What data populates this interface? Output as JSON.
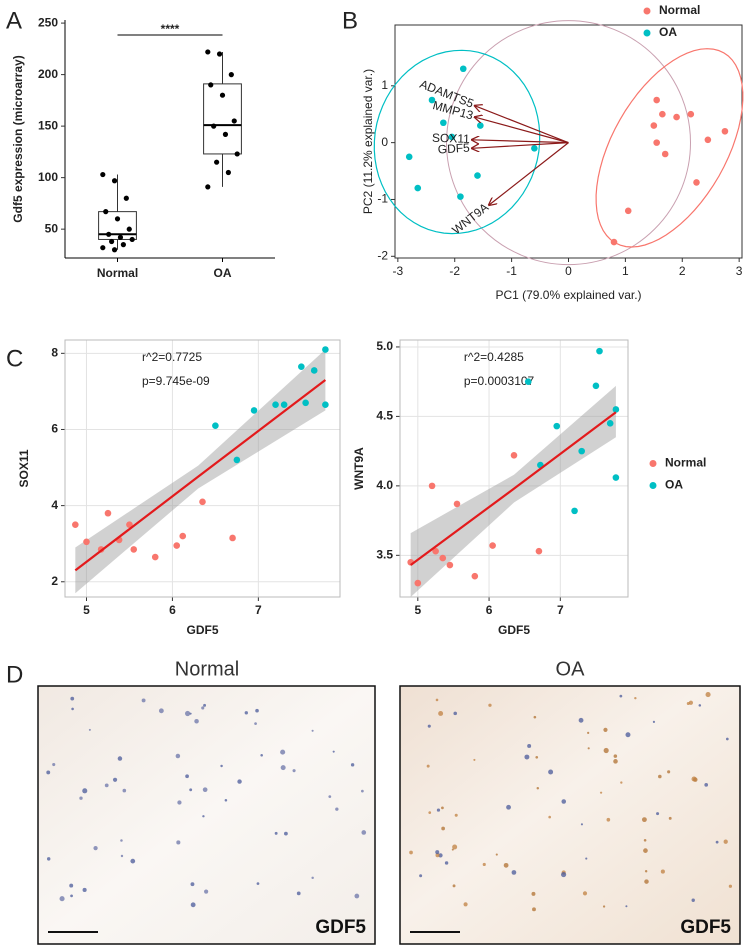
{
  "panel_labels": [
    "A",
    "B",
    "C",
    "D"
  ],
  "histology": [
    {
      "title": "Normal",
      "stain": "GDF5"
    },
    {
      "title": "OA",
      "stain": "GDF5"
    }
  ],
  "chart_data": [
    {
      "type": "box",
      "ylabel": "Gdf5 expression (microarray)",
      "categories": [
        "Normal",
        "OA"
      ],
      "color": "#000000",
      "ylim": [
        22,
        253
      ],
      "yticks": [
        50,
        100,
        150,
        200,
        250
      ],
      "significance": "****",
      "boxes": [
        {
          "min": 30,
          "q1": 40,
          "median": 45,
          "q3": 67,
          "max": 103
        },
        {
          "min": 91,
          "q1": 123,
          "median": 151,
          "q3": 191,
          "max": 222
        }
      ],
      "points": [
        [
          103,
          97,
          80,
          67,
          60,
          50,
          45,
          42,
          40,
          38,
          35,
          32,
          30
        ],
        [
          222,
          220,
          200,
          190,
          180,
          155,
          150,
          142,
          123,
          115,
          105,
          91
        ]
      ]
    },
    {
      "type": "biplot",
      "xlabel": "PC1 (79.0% explained var.)",
      "ylabel": "PC2 (11.2% explained var.)",
      "xlim": [
        -3.05,
        3.05
      ],
      "xticks": [
        -3,
        -2,
        -1,
        0,
        1,
        2,
        3
      ],
      "ylim": [
        -2.03,
        2.07
      ],
      "yticks": [
        -2,
        -1,
        0,
        1
      ],
      "legend": "top-right",
      "arrow_color": "#8b1a1a",
      "series": [
        {
          "name": "Normal",
          "color": "#f8766d",
          "x": [
            0.8,
            1.05,
            1.5,
            1.55,
            1.55,
            1.65,
            1.7,
            1.9,
            2.15,
            2.25,
            2.45,
            2.75
          ],
          "y": [
            -1.75,
            -1.2,
            0.3,
            0.75,
            0.0,
            0.5,
            -0.2,
            0.45,
            0.5,
            -0.7,
            0.05,
            0.2
          ]
        },
        {
          "name": "OA",
          "color": "#00bfc4",
          "x": [
            -2.8,
            -2.65,
            -2.4,
            -2.2,
            -2.05,
            -1.9,
            -1.85,
            -1.6,
            -1.55,
            -0.6
          ],
          "y": [
            -0.25,
            -0.8,
            0.75,
            0.35,
            0.1,
            -0.95,
            1.3,
            -0.58,
            0.3,
            -0.1
          ]
        }
      ],
      "arrows": [
        {
          "label": "ADAMTS5",
          "x": -1.65,
          "y": 0.65
        },
        {
          "label": "MMP13",
          "x": -1.65,
          "y": 0.45
        },
        {
          "label": "SOX11",
          "x": -1.7,
          "y": 0.05
        },
        {
          "label": "GDF5",
          "x": -1.7,
          "y": -0.1
        },
        {
          "label": "WNT9A",
          "x": -1.4,
          "y": -1.1
        }
      ]
    },
    {
      "type": "scatter",
      "xlabel": "GDF5",
      "ylabel": "SOX11",
      "grid": true,
      "xlim": [
        4.75,
        7.95
      ],
      "xticks": [
        5,
        6,
        7
      ],
      "ylim": [
        1.6,
        8.35
      ],
      "yticks": [
        2,
        4,
        6,
        8
      ],
      "annotations": [
        "r^2=0.7725",
        "p=9.745e-09"
      ],
      "series": [
        {
          "color": "#f8766d",
          "x": [
            4.87,
            5.0,
            5.17,
            5.25,
            5.38,
            5.5,
            5.55,
            5.8,
            6.05,
            6.12,
            6.35,
            6.7
          ],
          "y": [
            3.5,
            3.05,
            2.85,
            3.8,
            3.1,
            3.5,
            2.85,
            2.65,
            2.95,
            3.2,
            4.1,
            3.15
          ]
        },
        {
          "color": "#00bfc4",
          "x": [
            6.5,
            6.75,
            6.95,
            7.2,
            7.3,
            7.5,
            7.55,
            7.65,
            7.78,
            7.78
          ],
          "y": [
            6.1,
            5.2,
            6.5,
            6.65,
            6.65,
            7.65,
            6.7,
            7.55,
            8.1,
            6.65
          ]
        }
      ],
      "fit": {
        "color": "#e31a1c",
        "band_color": "#999999",
        "x": [
          4.87,
          6.3,
          7.78
        ],
        "y": [
          2.3,
          4.76,
          7.3
        ],
        "lower": [
          1.7,
          4.45,
          6.5
        ],
        "upper": [
          2.9,
          5.05,
          8.1
        ]
      }
    },
    {
      "type": "scatter",
      "xlabel": "GDF5",
      "ylabel": "WNT9A",
      "grid": true,
      "legend": "right",
      "xlim": [
        4.75,
        7.95
      ],
      "xticks": [
        5,
        6,
        7
      ],
      "ylim": [
        3.2,
        5.05
      ],
      "yticks": [
        3.5,
        {
          "value": 4,
          "label": "4.0"
        },
        4.5,
        {
          "value": 5,
          "label": "5.0"
        }
      ],
      "annotations": [
        "r^2=0.4285",
        "p=0.0003107"
      ],
      "series": [
        {
          "name": "Normal",
          "color": "#f8766d",
          "x": [
            4.9,
            5.0,
            5.2,
            5.25,
            5.35,
            5.45,
            5.55,
            5.8,
            6.05,
            6.35,
            6.7
          ],
          "y": [
            3.45,
            3.3,
            4.0,
            3.53,
            3.48,
            3.43,
            3.87,
            3.35,
            3.57,
            4.22,
            3.53
          ]
        },
        {
          "name": "OA",
          "color": "#00bfc4",
          "x": [
            6.55,
            6.72,
            6.95,
            7.2,
            7.3,
            7.5,
            7.55,
            7.7,
            7.78,
            7.78
          ],
          "y": [
            4.75,
            4.15,
            4.43,
            3.82,
            4.25,
            4.72,
            4.97,
            4.45,
            4.55,
            4.06
          ]
        }
      ],
      "fit": {
        "color": "#e31a1c",
        "band_color": "#999999",
        "x": [
          4.9,
          6.35,
          7.78
        ],
        "y": [
          3.43,
          3.98,
          4.53
        ],
        "lower": [
          3.2,
          3.88,
          4.35
        ],
        "upper": [
          3.66,
          4.08,
          4.72
        ]
      }
    }
  ]
}
